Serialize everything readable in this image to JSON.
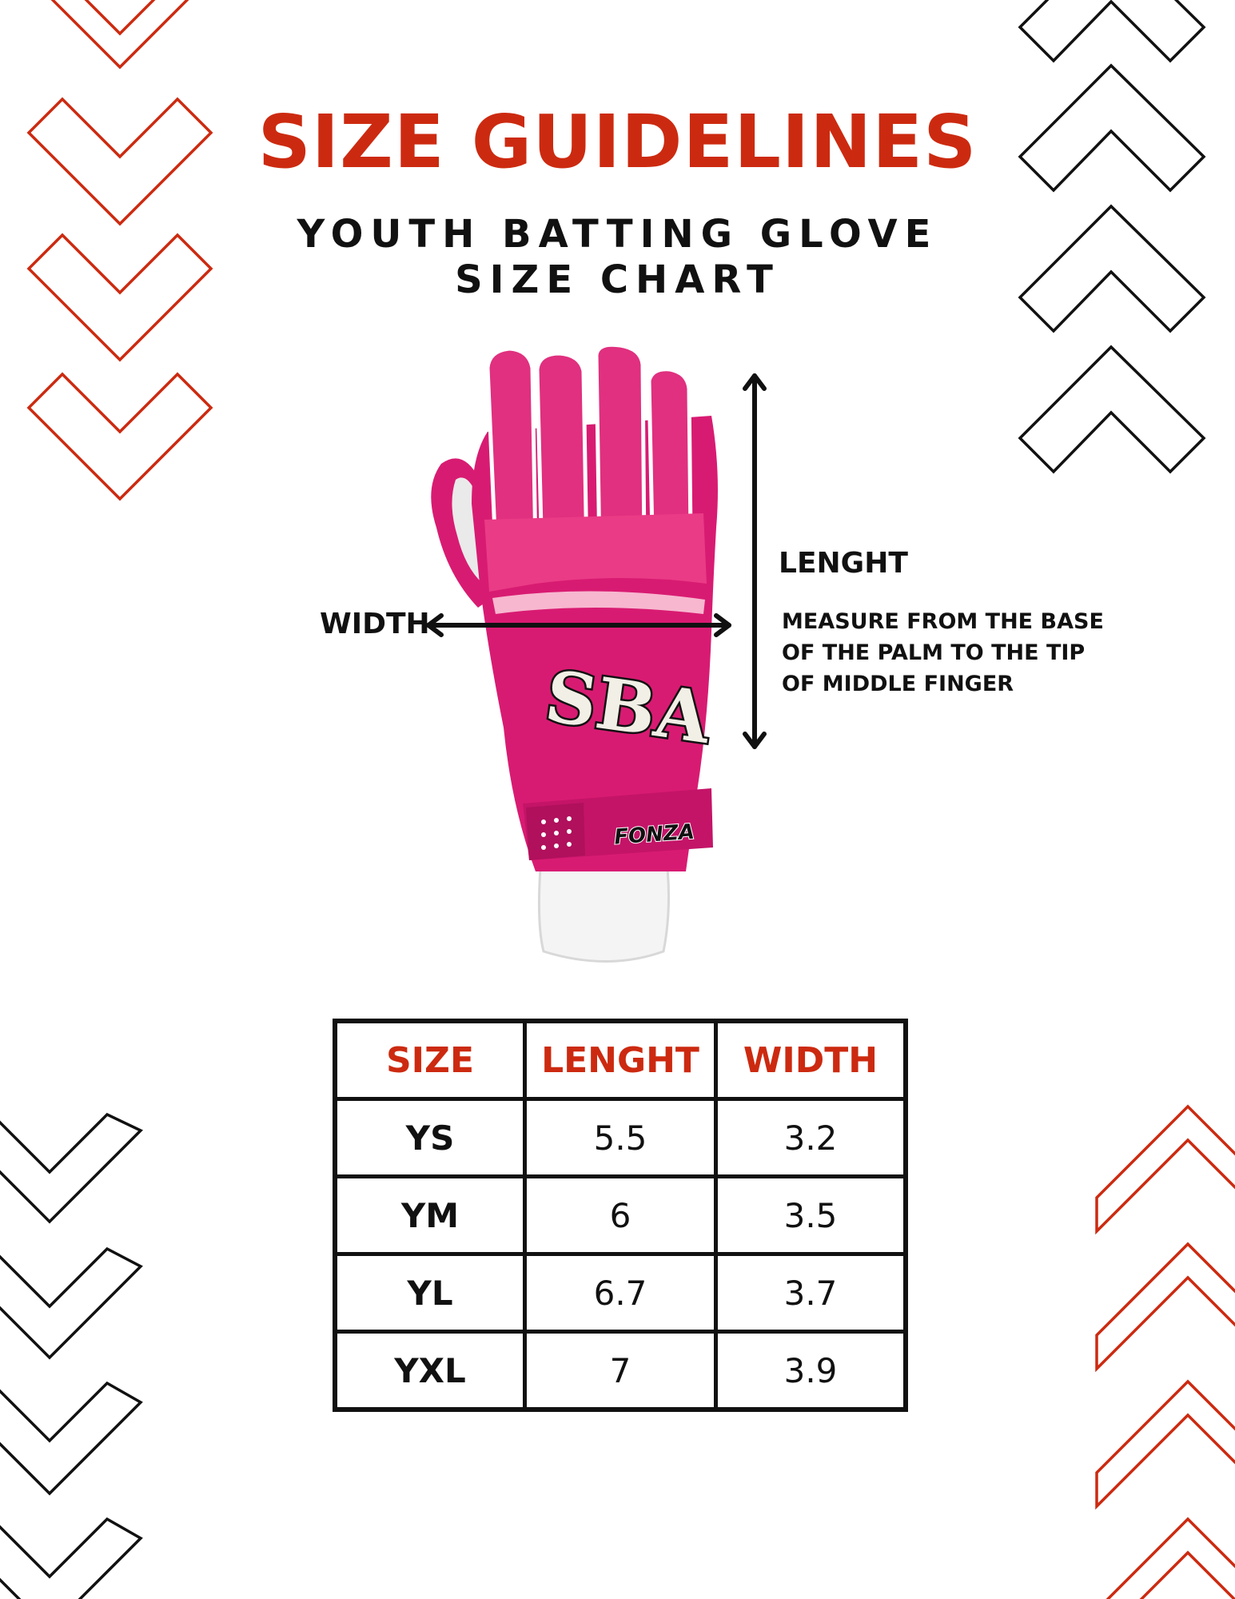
{
  "header": {
    "title": "SIZE GUIDELINES",
    "subtitle_line1": "YOUTH BATTING GLOVE",
    "subtitle_line2": "SIZE CHART"
  },
  "colors": {
    "accent": "#cc2a10",
    "ink": "#111111",
    "glove_pink": "#d81b72",
    "glove_light_pink": "#f7b7cf"
  },
  "diagram": {
    "length_label": "LENGHT",
    "width_label": "WIDTH",
    "note": "MEASURE FROM THE BASE OF THE PALM TO THE TIP OF MIDDLE FINGER",
    "logo_text": "SBA",
    "strap_text": "FONZA",
    "icons": [
      "double-arrow-vertical-icon",
      "double-arrow-horizontal-icon",
      "chevron-down-icon",
      "chevron-up-icon"
    ]
  },
  "size_table": {
    "headers": [
      "SIZE",
      "LENGHT",
      "WIDTH"
    ],
    "rows": [
      {
        "size": "YS",
        "length": "5.5",
        "width": "3.2"
      },
      {
        "size": "YM",
        "length": "6",
        "width": "3.5"
      },
      {
        "size": "YL",
        "length": "6.7",
        "width": "3.7"
      },
      {
        "size": "YXL",
        "length": "7",
        "width": "3.9"
      }
    ]
  }
}
